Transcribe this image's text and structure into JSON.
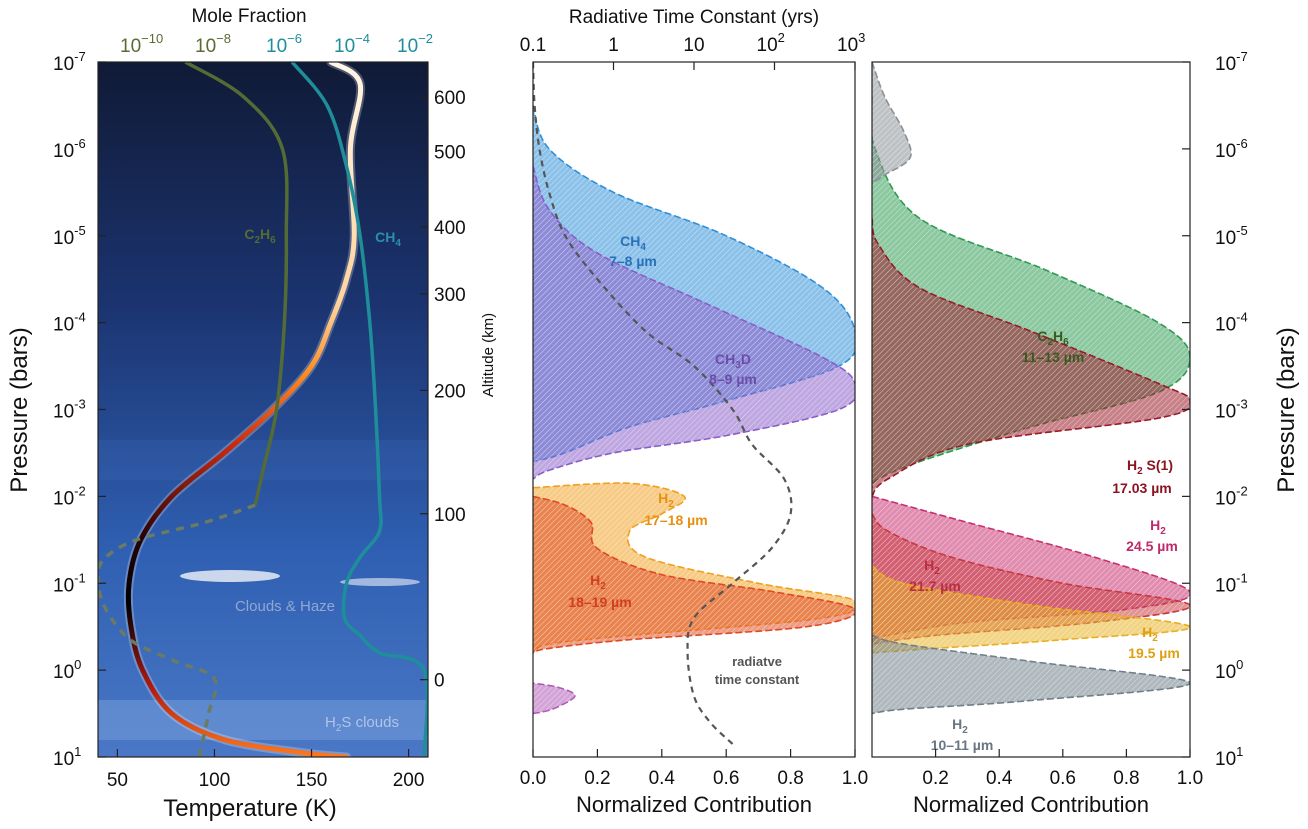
{
  "chart_data": [
    {
      "type": "line",
      "panel": "temperature-profile",
      "xlabel": "Temperature (K)",
      "ylabel": "Pressure (bars)",
      "y2label": "Altitude (km)",
      "top_axis_title": "Mole Fraction",
      "x_ticks": [
        "50",
        "100",
        "150",
        "200"
      ],
      "xlim": [
        40,
        210
      ],
      "y_scale": "log",
      "ylim_bars": [
        10,
        1e-07
      ],
      "y_ticks": [
        {
          "base": "10",
          "exp": "-7"
        },
        {
          "base": "10",
          "exp": "-6"
        },
        {
          "base": "10",
          "exp": "-5"
        },
        {
          "base": "10",
          "exp": "-4"
        },
        {
          "base": "10",
          "exp": "-3"
        },
        {
          "base": "10",
          "exp": "-2"
        },
        {
          "base": "10",
          "exp": "-1"
        },
        {
          "base": "10",
          "exp": "0"
        },
        {
          "base": "10",
          "exp": "1"
        }
      ],
      "mole_fraction_ticks": [
        {
          "base": "10",
          "exp": "−10",
          "color": "#5a6b33"
        },
        {
          "base": "10",
          "exp": "−8",
          "color": "#5a6b33"
        },
        {
          "base": "10",
          "exp": "−6",
          "color": "#1e8f9a"
        },
        {
          "base": "10",
          "exp": "−4",
          "color": "#1e8f9a"
        },
        {
          "base": "10",
          "exp": "−2",
          "color": "#1e8f9a"
        }
      ],
      "altitude_ticks": [
        "600",
        "500",
        "400",
        "300",
        "200",
        "100",
        "0"
      ],
      "altitude_tick_logp": [
        -6.6,
        -5.97,
        -5.1,
        -4.33,
        -3.22,
        -1.8,
        0.11
      ],
      "series": [
        {
          "role": "temperature",
          "points": [
            [
              160,
              -7
            ],
            [
              175,
              -6.75
            ],
            [
              170,
              -6
            ],
            [
              172,
              -5
            ],
            [
              168,
              -4.5
            ],
            [
              160,
              -4
            ],
            [
              150,
              -3.5
            ],
            [
              130,
              -3
            ],
            [
              105,
              -2.5
            ],
            [
              78,
              -2
            ],
            [
              62,
              -1.5
            ],
            [
              56,
              -1
            ],
            [
              57,
              -0.5
            ],
            [
              63,
              0
            ],
            [
              78,
              0.5
            ],
            [
              105,
              0.8
            ],
            [
              145,
              0.95
            ],
            [
              168,
              1
            ]
          ]
        },
        {
          "role": "C2H6",
          "label": "C",
          "sub": "2",
          "label2": "H",
          "sub2": "6",
          "color": "#556b35",
          "points": [
            [
              85,
              -7
            ],
            [
              115,
              -6.6
            ],
            [
              135,
              -6
            ],
            [
              137,
              -5
            ],
            [
              136,
              -4
            ],
            [
              132,
              -3
            ],
            [
              125,
              -2.3
            ],
            [
              121,
              -1.9
            ]
          ]
        },
        {
          "role": "C2H6-dashed",
          "color": "#6b7a62",
          "points": [
            [
              121,
              -1.9
            ],
            [
              95,
              -1.7
            ],
            [
              60,
              -1.5
            ],
            [
              44,
              -1.3
            ],
            [
              40,
              -1.1
            ],
            [
              42,
              -0.8
            ],
            [
              50,
              -0.5
            ],
            [
              60,
              -0.3
            ],
            [
              80,
              -0.1
            ],
            [
              100,
              0.1
            ],
            [
              97,
              0.5
            ],
            [
              92,
              1
            ]
          ]
        },
        {
          "role": "CH4",
          "label": "CH",
          "sub": "4",
          "color": "#1e8f9a",
          "points": [
            [
              140,
              -7
            ],
            [
              158,
              -6.5
            ],
            [
              168,
              -5.8
            ],
            [
              175,
              -5
            ],
            [
              180,
              -4
            ],
            [
              183,
              -3
            ],
            [
              185,
              -2
            ],
            [
              185,
              -1.6
            ],
            [
              175,
              -1.3
            ],
            [
              168,
              -1
            ],
            [
              167,
              -0.6
            ],
            [
              175,
              -0.4
            ],
            [
              185,
              -0.2
            ],
            [
              208,
              0
            ],
            [
              208,
              1
            ]
          ]
        }
      ],
      "annotations": [
        "Clouds & Haze",
        "H2S clouds"
      ],
      "annotation_parts": [
        {
          "text": "Clouds & Haze"
        },
        {
          "pre": "H",
          "sub": "2",
          "post": "S clouds"
        }
      ]
    },
    {
      "type": "area",
      "panel": "contribution-functions-1",
      "xlabel": "Normalized Contribution",
      "x_ticks": [
        "0.0",
        "0.2",
        "0.4",
        "0.6",
        "0.8",
        "1.0"
      ],
      "xlim": [
        0,
        1
      ],
      "top_axis_title": "Radiative Time Constant (yrs)",
      "top_ticks": [
        {
          "text": "0.1"
        },
        {
          "text": "1"
        },
        {
          "text": "10"
        },
        {
          "base": "10",
          "exp": "2"
        },
        {
          "base": "10",
          "exp": "3"
        }
      ],
      "series": [
        {
          "name": "CH4",
          "label_top": "CH",
          "sub": "4",
          "label_bottom": "7–8 µm",
          "color": "#2e8fd8",
          "peak_logp": -3.9,
          "points": [
            [
              0,
              -6.5
            ],
            [
              0.05,
              -6
            ],
            [
              0.25,
              -5.5
            ],
            [
              0.6,
              -5
            ],
            [
              0.9,
              -4.4
            ],
            [
              1.0,
              -3.9
            ],
            [
              0.95,
              -3.5
            ],
            [
              0.6,
              -3.1
            ],
            [
              0.3,
              -2.8
            ],
            [
              0.1,
              -2.5
            ],
            [
              0,
              -2.4
            ]
          ]
        },
        {
          "name": "CH3D",
          "label_top": "CH",
          "sub": "3",
          "label_post": "D",
          "label_bottom": "8–9 µm",
          "color": "#8a5ec8",
          "peak_logp": -3.3,
          "points": [
            [
              0,
              -5.8
            ],
            [
              0.05,
              -5.3
            ],
            [
              0.2,
              -4.8
            ],
            [
              0.55,
              -4.2
            ],
            [
              0.9,
              -3.6
            ],
            [
              1.0,
              -3.3
            ],
            [
              0.95,
              -3.0
            ],
            [
              0.6,
              -2.7
            ],
            [
              0.25,
              -2.5
            ],
            [
              0.05,
              -2.3
            ],
            [
              0,
              -2.2
            ]
          ]
        },
        {
          "name": "H2 17-18",
          "label_top": "H",
          "sub": "2",
          "label_bottom": "17–18 µm",
          "color": "#f0a020",
          "peak_logp": -0.8,
          "points": [
            [
              0,
              -2.1
            ],
            [
              0.3,
              -2.15
            ],
            [
              0.47,
              -2
            ],
            [
              0.4,
              -1.8
            ],
            [
              0.3,
              -1.6
            ],
            [
              0.35,
              -1.3
            ],
            [
              0.7,
              -1.0
            ],
            [
              1.0,
              -0.8
            ],
            [
              0.9,
              -0.6
            ],
            [
              0.3,
              -0.4
            ],
            [
              0.05,
              -0.3
            ],
            [
              0,
              -0.2
            ]
          ]
        },
        {
          "name": "H2 18-19",
          "label_top": "H",
          "sub": "2",
          "label_bottom": "18–19 µm",
          "color": "#e04a20",
          "peak_logp": -0.7,
          "points": [
            [
              0,
              -2.0
            ],
            [
              0.1,
              -1.9
            ],
            [
              0.18,
              -1.7
            ],
            [
              0.2,
              -1.4
            ],
            [
              0.4,
              -1.1
            ],
            [
              0.75,
              -0.9
            ],
            [
              1.0,
              -0.7
            ],
            [
              0.85,
              -0.5
            ],
            [
              0.3,
              -0.35
            ],
            [
              0.05,
              -0.25
            ],
            [
              0,
              -0.2
            ]
          ]
        },
        {
          "name": "deep CH3D",
          "color": "#b05ab8",
          "points": [
            [
              0,
              0.5
            ],
            [
              0.06,
              0.45
            ],
            [
              0.13,
              0.3
            ],
            [
              0.08,
              0.2
            ],
            [
              0,
              0.15
            ]
          ]
        },
        {
          "name": "radiative time constant",
          "label_top": "radiatve",
          "label_bottom": "time constant",
          "color": "#555555",
          "dashed": true,
          "points": [
            [
              0,
              -7
            ],
            [
              0.005,
              -6.5
            ],
            [
              0.02,
              -6
            ],
            [
              0.05,
              -5.5
            ],
            [
              0.1,
              -5
            ],
            [
              0.2,
              -4.5
            ],
            [
              0.35,
              -3.9
            ],
            [
              0.5,
              -3.5
            ],
            [
              0.62,
              -3.0
            ],
            [
              0.68,
              -2.6
            ],
            [
              0.78,
              -2.2
            ],
            [
              0.8,
              -1.8
            ],
            [
              0.74,
              -1.4
            ],
            [
              0.62,
              -1.0
            ],
            [
              0.5,
              -0.6
            ],
            [
              0.48,
              -0.2
            ],
            [
              0.5,
              0.3
            ],
            [
              0.55,
              0.6
            ],
            [
              0.62,
              0.85
            ]
          ]
        }
      ]
    },
    {
      "type": "area",
      "panel": "contribution-functions-2",
      "xlabel": "Normalized Contribution",
      "ylabel": "Pressure (bars)",
      "x_ticks": [
        "0.2",
        "0.4",
        "0.6",
        "0.8",
        "1.0"
      ],
      "xlim": [
        0,
        1
      ],
      "series": [
        {
          "name": "C2H6",
          "label_top": "C",
          "sub": "2",
          "label_mid": "H",
          "sub2": "6",
          "label_bottom": "11–13 µm",
          "color": "#2e9a52",
          "peak_logp": -3.6,
          "points": [
            [
              0,
              -6.6
            ],
            [
              0.01,
              -6
            ],
            [
              0.15,
              -5.2
            ],
            [
              0.55,
              -4.6
            ],
            [
              0.9,
              -4
            ],
            [
              1.0,
              -3.6
            ],
            [
              0.9,
              -3.2
            ],
            [
              0.5,
              -2.8
            ],
            [
              0.15,
              -2.4
            ],
            [
              0.02,
              -2.2
            ],
            [
              0,
              -2.1
            ]
          ]
        },
        {
          "name": "H2 S(1)",
          "label_top": "H",
          "sub": "2",
          "label_post": " S(1)",
          "label_bottom": "17.03 µm",
          "color": "#9a1a28",
          "peak_logp": -3.1,
          "points": [
            [
              0,
              -5.2
            ],
            [
              0.02,
              -4.9
            ],
            [
              0.15,
              -4.4
            ],
            [
              0.5,
              -3.9
            ],
            [
              0.9,
              -3.3
            ],
            [
              1.0,
              -3.1
            ],
            [
              0.9,
              -2.9
            ],
            [
              0.3,
              -2.6
            ],
            [
              0.05,
              -2.2
            ],
            [
              0,
              -2.0
            ]
          ]
        },
        {
          "name": "H2 24.5",
          "label_top": "H",
          "sub": "2",
          "label_bottom": "24.5 µm",
          "color": "#c83070",
          "peak_logp": -0.9,
          "points": [
            [
              0,
              -2.0
            ],
            [
              0.1,
              -1.9
            ],
            [
              0.3,
              -1.7
            ],
            [
              0.7,
              -1.3
            ],
            [
              1.0,
              -0.9
            ],
            [
              0.8,
              -0.7
            ],
            [
              0.3,
              -0.55
            ],
            [
              0.05,
              -0.4
            ],
            [
              0,
              -0.35
            ]
          ]
        },
        {
          "name": "H2 21.7",
          "label_top": "H",
          "sub": "2",
          "label_bottom": "21.7 µm",
          "color": "#c83a40",
          "peak_logp": -0.75,
          "points": [
            [
              0,
              -1.8
            ],
            [
              0.05,
              -1.6
            ],
            [
              0.25,
              -1.3
            ],
            [
              0.6,
              -1.0
            ],
            [
              1.0,
              -0.75
            ],
            [
              0.7,
              -0.55
            ],
            [
              0.2,
              -0.4
            ],
            [
              0,
              -0.3
            ]
          ]
        },
        {
          "name": "H2 19.5",
          "label_top": "H",
          "sub": "2",
          "label_bottom": "19.5 µm",
          "color": "#e8b020",
          "peak_logp": -0.5,
          "points": [
            [
              0,
              -1.2
            ],
            [
              0.1,
              -1.0
            ],
            [
              0.5,
              -0.75
            ],
            [
              1.0,
              -0.5
            ],
            [
              0.6,
              -0.35
            ],
            [
              0.2,
              -0.25
            ],
            [
              0,
              -0.2
            ]
          ]
        },
        {
          "name": "H2 10-11",
          "label_top": "H",
          "sub": "2",
          "label_bottom": "10–11 µm",
          "color": "#708088",
          "peak_logp": 0.15,
          "points": [
            [
              0,
              -0.4
            ],
            [
              0.1,
              -0.3
            ],
            [
              0.5,
              -0.1
            ],
            [
              1.0,
              0.15
            ],
            [
              0.5,
              0.35
            ],
            [
              0.1,
              0.45
            ],
            [
              0,
              0.5
            ]
          ]
        },
        {
          "name": "upper H2 bump",
          "color": "#8a9096",
          "points": [
            [
              0,
              -7
            ],
            [
              0.04,
              -6.6
            ],
            [
              0.1,
              -6.2
            ],
            [
              0.12,
              -5.9
            ],
            [
              0.04,
              -5.7
            ],
            [
              0,
              -5.6
            ]
          ]
        }
      ]
    }
  ]
}
